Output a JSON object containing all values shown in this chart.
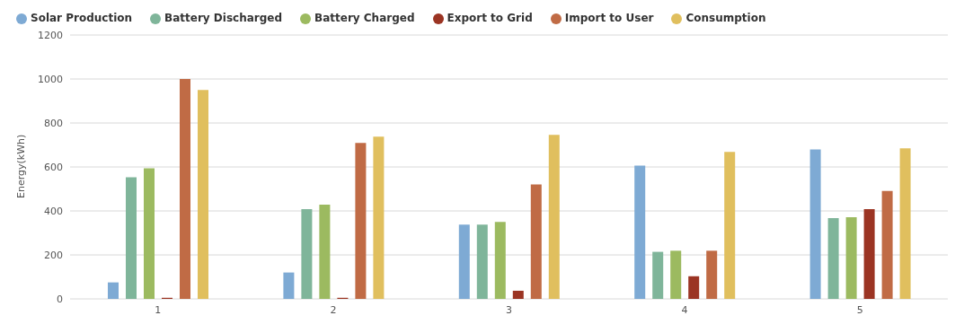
{
  "chart_data": {
    "type": "bar",
    "ylabel": "Energy(kWh)",
    "categories": [
      "1",
      "2",
      "3",
      "4",
      "5"
    ],
    "series": [
      {
        "name": "Solar Production",
        "color": "#7eaad4",
        "values": [
          75,
          120,
          338,
          606,
          680
        ]
      },
      {
        "name": "Battery Discharged",
        "color": "#7fb59a",
        "values": [
          553,
          408,
          338,
          214,
          367
        ]
      },
      {
        "name": "Battery Charged",
        "color": "#9cba60",
        "values": [
          594,
          429,
          350,
          219,
          371
        ]
      },
      {
        "name": "Export to Grid",
        "color": "#9b3423",
        "values": [
          5,
          5,
          37,
          103,
          408
        ]
      },
      {
        "name": "Import to User",
        "color": "#c06b45",
        "values": [
          1000,
          709,
          520,
          219,
          491
        ]
      },
      {
        "name": "Consumption",
        "color": "#e0bf5e",
        "values": [
          950,
          738,
          746,
          668,
          685
        ]
      }
    ],
    "ylim": [
      0,
      1200
    ],
    "yticks": [
      0,
      200,
      400,
      600,
      800,
      1000,
      1200
    ],
    "grid": "y",
    "legend": "top left"
  }
}
